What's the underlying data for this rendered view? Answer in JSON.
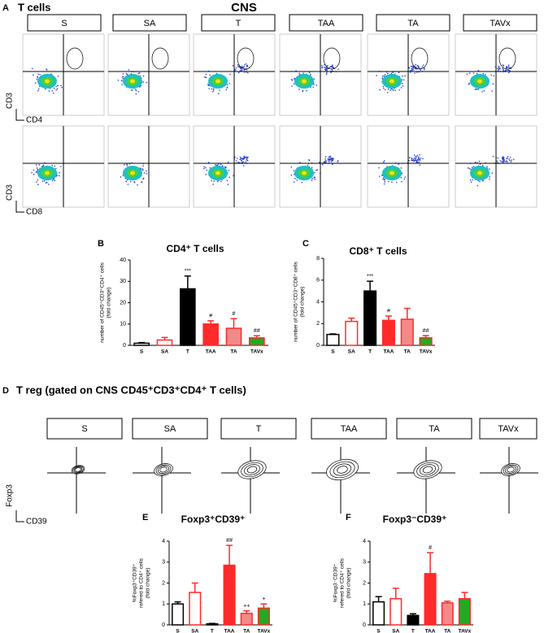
{
  "panel_a": {
    "label": "A",
    "title": "T cells",
    "tissue": "CNS",
    "groups": [
      "S",
      "SA",
      "T",
      "TAA",
      "TA",
      "TAVx"
    ],
    "row1_y": "CD3",
    "row1_x": "CD4",
    "row2_y": "CD3",
    "row2_x": "CD8"
  },
  "panel_d": {
    "label": "D",
    "title": "T reg (gated on CNS CD45⁺CD3⁺CD4⁺ T cells)",
    "groups": [
      "S",
      "SA",
      "T",
      "TAA",
      "TA",
      "TAVx"
    ],
    "y_axis": "Foxp3",
    "x_axis": "CD39"
  },
  "chart_data": [
    {
      "type": "bar",
      "panel": "B",
      "title": "CD4⁺ T cells",
      "ylabel": [
        "number of CD45⁺CD3⁺CD4⁺ cells",
        "(fold change)"
      ],
      "categories": [
        "S",
        "SA",
        "T",
        "TAA",
        "TA",
        "TAVx"
      ],
      "values": [
        1,
        2.5,
        26.5,
        10,
        8,
        3.5
      ],
      "errors": [
        0.3,
        1.2,
        6,
        1.5,
        4.5,
        1
      ],
      "colors": [
        "#ffffff",
        "#ffffff",
        "#000000",
        "#ff2a2a",
        "#f28a8a",
        "#22aa22"
      ],
      "edge_colors": [
        "#000000",
        "#ff2a2a",
        "#000000",
        "#ff2a2a",
        "#ff2a2a",
        "#ff2a2a"
      ],
      "annotations": [
        null,
        null,
        "***",
        "#",
        "#",
        "##"
      ],
      "ylim": [
        0,
        40
      ],
      "yticks": [
        0,
        10,
        20,
        30,
        40
      ]
    },
    {
      "type": "bar",
      "panel": "C",
      "title": "CD8⁺ T cells",
      "ylabel": [
        "number of CD45⁺CD3⁺CD8⁺ cells",
        "(fold change)"
      ],
      "categories": [
        "S",
        "SA",
        "T",
        "TAA",
        "TA",
        "TAVx"
      ],
      "values": [
        1,
        2.2,
        5,
        2.3,
        2.4,
        0.7
      ],
      "errors": [
        0.05,
        0.3,
        0.9,
        0.4,
        1,
        0.2
      ],
      "colors": [
        "#ffffff",
        "#ffffff",
        "#000000",
        "#ff2a2a",
        "#f28a8a",
        "#22aa22"
      ],
      "edge_colors": [
        "#000000",
        "#ff2a2a",
        "#000000",
        "#ff2a2a",
        "#ff2a2a",
        "#ff2a2a"
      ],
      "annotations": [
        null,
        null,
        "***",
        "#",
        null,
        "##"
      ],
      "ylim": [
        0,
        8
      ],
      "yticks": [
        0,
        2,
        4,
        6,
        8
      ]
    },
    {
      "type": "bar",
      "panel": "E",
      "title": "Foxp3⁺CD39⁺",
      "ylabel": [
        "%Foxp3⁺CD39⁺",
        "refered to CD4⁺ cells",
        "(fold change)"
      ],
      "categories": [
        "S",
        "SA",
        "T",
        "TAA",
        "TA",
        "TAVx"
      ],
      "values": [
        1,
        1.55,
        0.05,
        2.85,
        0.55,
        0.8
      ],
      "errors": [
        0.1,
        0.45,
        0.02,
        0.95,
        0.12,
        0.2
      ],
      "colors": [
        "#ffffff",
        "#ffffff",
        "#000000",
        "#ff2a2a",
        "#f28a8a",
        "#22aa22"
      ],
      "edge_colors": [
        "#000000",
        "#ff2a2a",
        "#000000",
        "#ff2a2a",
        "#ff2a2a",
        "#ff2a2a"
      ],
      "annotations": [
        null,
        null,
        null,
        "##",
        "++",
        "+"
      ],
      "ylim": [
        0,
        4
      ],
      "yticks": [
        0,
        1,
        2,
        3,
        4
      ]
    },
    {
      "type": "bar",
      "panel": "F",
      "title": "Foxp3⁻CD39⁺",
      "ylabel": [
        "%Foxp3⁻CD39⁺",
        "refered to CD4⁺ cells",
        "(fold change)"
      ],
      "categories": [
        "S",
        "SA",
        "T",
        "TAA",
        "TA",
        "TAVx"
      ],
      "values": [
        1.1,
        1.25,
        0.45,
        2.45,
        1.05,
        1.25
      ],
      "errors": [
        0.25,
        0.5,
        0.08,
        1,
        0.08,
        0.3
      ],
      "colors": [
        "#ffffff",
        "#ffffff",
        "#000000",
        "#ff2a2a",
        "#f28a8a",
        "#22aa22"
      ],
      "edge_colors": [
        "#000000",
        "#ff2a2a",
        "#000000",
        "#ff2a2a",
        "#ff2a2a",
        "#ff2a2a"
      ],
      "annotations": [
        null,
        null,
        null,
        "#",
        null,
        null
      ],
      "ylim": [
        0,
        4
      ],
      "yticks": [
        0,
        1,
        2,
        3,
        4
      ]
    }
  ]
}
